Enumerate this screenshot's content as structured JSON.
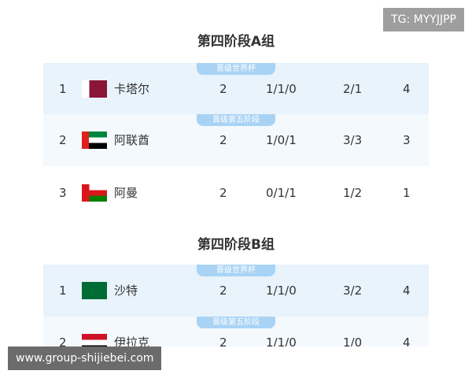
{
  "watermark_top": "TG: MYYJJPP",
  "watermark_bottom": "www.group-shijiebei.com",
  "groups": [
    {
      "title": "第四阶段A组",
      "rows": [
        {
          "badge": "晋级世界杯",
          "rank": "1",
          "team": "卡塔尔",
          "played": "2",
          "record": "1/1/0",
          "goals": "2/1",
          "points": "4"
        },
        {
          "badge": "晋级第五阶段",
          "rank": "2",
          "team": "阿联酋",
          "played": "2",
          "record": "1/0/1",
          "goals": "3/3",
          "points": "3"
        },
        {
          "rank": "3",
          "team": "阿曼",
          "played": "2",
          "record": "0/1/1",
          "goals": "1/2",
          "points": "1"
        }
      ]
    },
    {
      "title": "第四阶段B组",
      "rows": [
        {
          "badge": "晋级世界杯",
          "rank": "1",
          "team": "沙特",
          "played": "2",
          "record": "1/1/0",
          "goals": "3/2",
          "points": "4"
        },
        {
          "badge": "晋级第五阶段",
          "rank": "2",
          "team": "伊拉克",
          "played": "2",
          "record": "1/1/0",
          "goals": "1/0",
          "points": "4"
        }
      ]
    }
  ]
}
